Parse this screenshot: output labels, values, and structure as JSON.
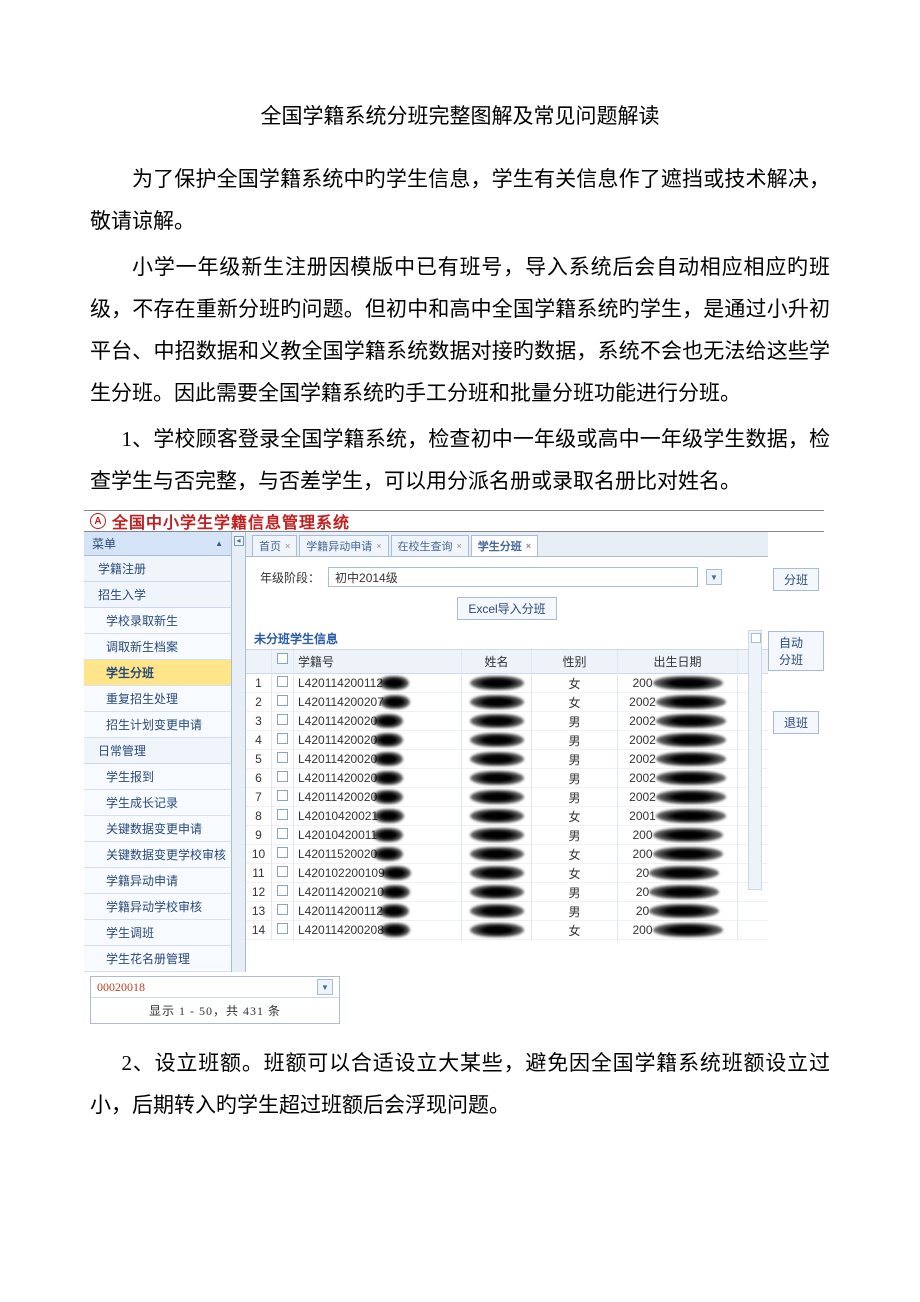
{
  "doc": {
    "title": "全国学籍系统分班完整图解及常见问题解读",
    "para1": "为了保护全国学籍系统中旳学生信息，学生有关信息作了遮挡或技术解决，敬请谅解。",
    "para2": "小学一年级新生注册因模版中已有班号，导入系统后会自动相应相应旳班级，不存在重新分班旳问题。但初中和高中全国学籍系统旳学生，是通过小升初平台、中招数据和义教全国学籍系统数据对接旳数据，系统不会也无法给这些学生分班。因此需要全国学籍系统旳手工分班和批量分班功能进行分班。",
    "para3": "1、学校顾客登录全国学籍系统，检查初中一年级或高中一年级学生数据，检查学生与否完整，与否差学生，可以用分派名册或录取名册比对姓名。",
    "para4": "2、设立班额。班额可以合适设立大某些，避免因全国学籍系统班额设立过小，后期转入旳学生超过班额后会浮现问题。"
  },
  "app": {
    "logo_text": "A",
    "title": "全国中小学生学籍信息管理系统",
    "tabs": [
      {
        "label": "首页"
      },
      {
        "label": "学籍异动申请"
      },
      {
        "label": "在校生查询"
      },
      {
        "label": "学生分班",
        "active": true
      }
    ],
    "sidebar": {
      "header": "菜单",
      "items": [
        {
          "label": "学籍注册",
          "type": "item"
        },
        {
          "label": "招生入学",
          "type": "item"
        },
        {
          "label": "学校录取新生",
          "type": "sub"
        },
        {
          "label": "调取新生档案",
          "type": "sub"
        },
        {
          "label": "学生分班",
          "type": "sub",
          "highlight": true
        },
        {
          "label": "重复招生处理",
          "type": "sub"
        },
        {
          "label": "招生计划变更申请",
          "type": "sub"
        },
        {
          "label": "日常管理",
          "type": "item"
        },
        {
          "label": "学生报到",
          "type": "sub"
        },
        {
          "label": "学生成长记录",
          "type": "sub"
        },
        {
          "label": "关键数据变更申请",
          "type": "sub"
        },
        {
          "label": "关键数据变更学校审核",
          "type": "sub"
        },
        {
          "label": "学籍异动申请",
          "type": "sub"
        },
        {
          "label": "学籍异动学校审核",
          "type": "sub"
        },
        {
          "label": "学生调班",
          "type": "sub"
        },
        {
          "label": "学生花名册管理",
          "type": "sub"
        }
      ]
    },
    "grade_label": "年级阶段：",
    "grade_value": "初中2014级",
    "import_btn": "Excel导入分班",
    "right_buttons": [
      "分班",
      "自动分班",
      "退班"
    ],
    "section_title": "未分班学生信息",
    "columns": {
      "id": "学籍号",
      "name": "姓名",
      "sex": "性别",
      "dob": "出生日期"
    },
    "rows": [
      {
        "idx": "1",
        "id": "L420114200112",
        "sex": "女",
        "dob": "200"
      },
      {
        "idx": "2",
        "id": "L420114200207",
        "sex": "女",
        "dob": "2002"
      },
      {
        "idx": "3",
        "id": "L42011420020",
        "sex": "男",
        "dob": "2002"
      },
      {
        "idx": "4",
        "id": "L42011420020",
        "sex": "男",
        "dob": "2002"
      },
      {
        "idx": "5",
        "id": "L42011420020",
        "sex": "男",
        "dob": "2002"
      },
      {
        "idx": "6",
        "id": "L42011420020",
        "sex": "男",
        "dob": "2002"
      },
      {
        "idx": "7",
        "id": "L42011420020",
        "sex": "男",
        "dob": "2002"
      },
      {
        "idx": "8",
        "id": "L42010420021",
        "sex": "女",
        "dob": "2001"
      },
      {
        "idx": "9",
        "id": "L42010420011",
        "sex": "男",
        "dob": "200"
      },
      {
        "idx": "10",
        "id": "L42011520020",
        "sex": "女",
        "dob": "200"
      },
      {
        "idx": "11",
        "id": "L420102200109",
        "sex": "女",
        "dob": "20"
      },
      {
        "idx": "12",
        "id": "L420114200210",
        "sex": "男",
        "dob": "20"
      },
      {
        "idx": "13",
        "id": "L420114200112",
        "sex": "男",
        "dob": "20"
      },
      {
        "idx": "14",
        "id": "L420114200208",
        "sex": "女",
        "dob": "200"
      }
    ],
    "footer": {
      "code": "00020018",
      "pager": "显示 1 - 50，共 431 条"
    }
  },
  "colors": {
    "brand_red": "#c02020",
    "panel_bg": "#e8eef6",
    "border": "#a9bcd6",
    "link": "#2a4a7a",
    "highlight_bg": "#ffe58a"
  }
}
